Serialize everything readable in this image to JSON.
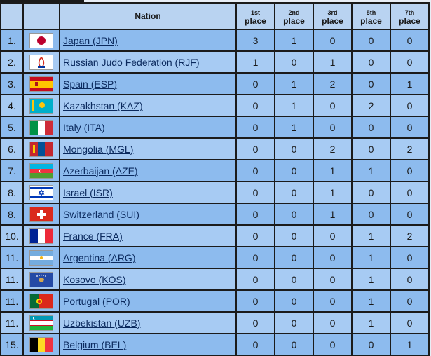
{
  "header": {
    "nation": "Nation",
    "col1": [
      "1st",
      "place"
    ],
    "col2": [
      "2nd",
      "place"
    ],
    "col3": [
      "3rd",
      "place"
    ],
    "col5": [
      "5th",
      "place"
    ],
    "col7": [
      "7th",
      "place"
    ]
  },
  "rows": [
    {
      "rank": "1.",
      "nation": "Japan (JPN)",
      "flag": "japan-flag",
      "v": [
        "3",
        "1",
        "0",
        "0",
        "0"
      ]
    },
    {
      "rank": "2.",
      "nation": "Russian Judo Federation (RJF)",
      "flag": "rjf-flag",
      "v": [
        "1",
        "0",
        "1",
        "0",
        "0"
      ]
    },
    {
      "rank": "3.",
      "nation": "Spain (ESP)",
      "flag": "spain-flag",
      "v": [
        "0",
        "1",
        "2",
        "0",
        "1"
      ]
    },
    {
      "rank": "4.",
      "nation": "Kazakhstan (KAZ)",
      "flag": "kazakhstan-flag",
      "v": [
        "0",
        "1",
        "0",
        "2",
        "0"
      ]
    },
    {
      "rank": "5.",
      "nation": "Italy (ITA)",
      "flag": "italy-flag",
      "v": [
        "0",
        "1",
        "0",
        "0",
        "0"
      ]
    },
    {
      "rank": "6.",
      "nation": "Mongolia (MGL)",
      "flag": "mongolia-flag",
      "v": [
        "0",
        "0",
        "2",
        "0",
        "2"
      ]
    },
    {
      "rank": "7.",
      "nation": "Azerbaijan (AZE)",
      "flag": "azerbaijan-flag",
      "v": [
        "0",
        "0",
        "1",
        "1",
        "0"
      ]
    },
    {
      "rank": "8.",
      "nation": "Israel (ISR)",
      "flag": "israel-flag",
      "v": [
        "0",
        "0",
        "1",
        "0",
        "0"
      ]
    },
    {
      "rank": "8.",
      "nation": "Switzerland (SUI)",
      "flag": "switzerland-flag",
      "v": [
        "0",
        "0",
        "1",
        "0",
        "0"
      ]
    },
    {
      "rank": "10.",
      "nation": "France (FRA)",
      "flag": "france-flag",
      "v": [
        "0",
        "0",
        "0",
        "1",
        "2"
      ]
    },
    {
      "rank": "11.",
      "nation": "Argentina (ARG)",
      "flag": "argentina-flag",
      "v": [
        "0",
        "0",
        "0",
        "1",
        "0"
      ]
    },
    {
      "rank": "11.",
      "nation": "Kosovo (KOS)",
      "flag": "kosovo-flag",
      "v": [
        "0",
        "0",
        "0",
        "1",
        "0"
      ]
    },
    {
      "rank": "11.",
      "nation": "Portugal (POR)",
      "flag": "portugal-flag",
      "v": [
        "0",
        "0",
        "0",
        "1",
        "0"
      ]
    },
    {
      "rank": "11.",
      "nation": "Uzbekistan (UZB)",
      "flag": "uzbekistan-flag",
      "v": [
        "0",
        "0",
        "0",
        "1",
        "0"
      ]
    },
    {
      "rank": "15.",
      "nation": "Belgium (BEL)",
      "flag": "belgium-flag",
      "v": [
        "0",
        "0",
        "0",
        "0",
        "1"
      ]
    }
  ]
}
